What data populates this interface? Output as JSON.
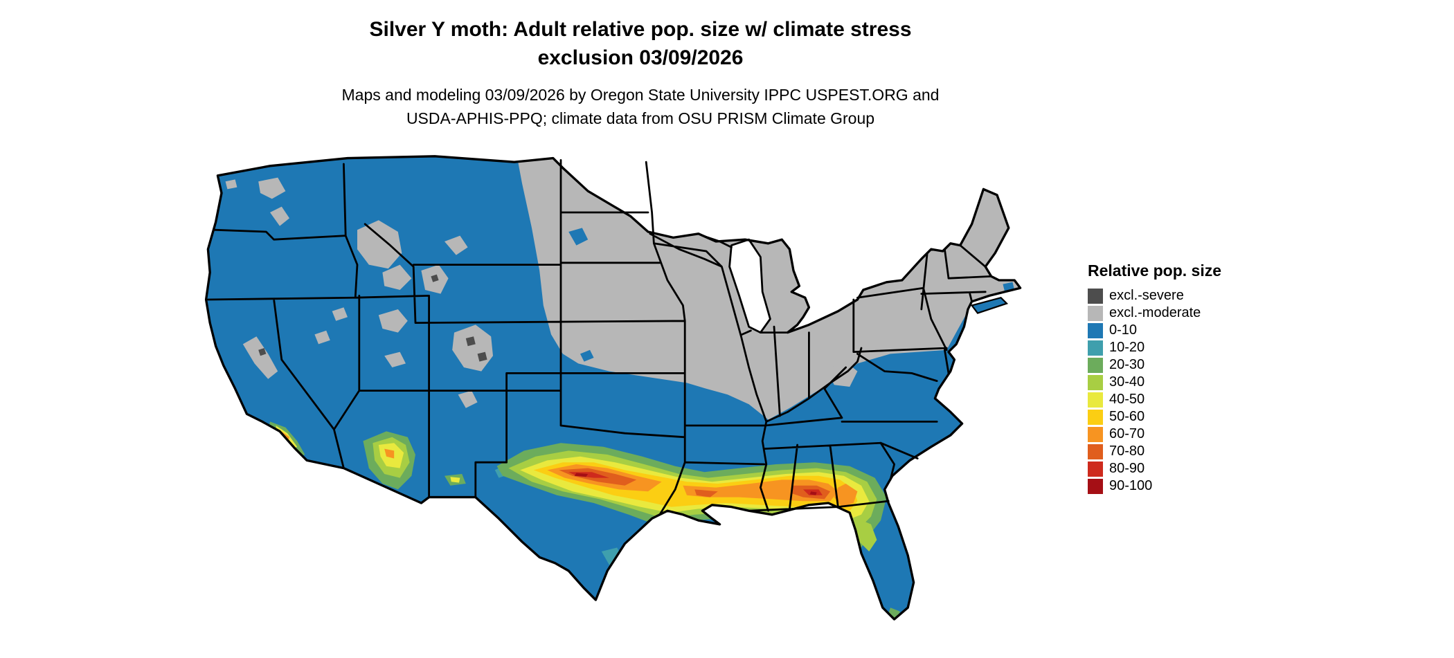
{
  "title": {
    "line1": "Silver Y moth: Adult relative pop. size w/ climate stress",
    "line2": "exclusion 03/09/2026"
  },
  "subtitle": {
    "line1": "Maps and modeling 03/09/2026 by Oregon State University IPPC USPEST.ORG and",
    "line2": "USDA-APHIS-PPQ; climate data from OSU PRISM Climate Group"
  },
  "legend": {
    "title": "Relative pop. size",
    "items": [
      {
        "label": "excl.-severe",
        "color": "#4D4D4D"
      },
      {
        "label": "excl.-moderate",
        "color": "#B7B7B7"
      },
      {
        "label": "0-10",
        "color": "#1E78B4"
      },
      {
        "label": "10-20",
        "color": "#3F9FAD"
      },
      {
        "label": "20-30",
        "color": "#6CAC5C"
      },
      {
        "label": "30-40",
        "color": "#A8CE43"
      },
      {
        "label": "40-50",
        "color": "#E9E93E"
      },
      {
        "label": "50-60",
        "color": "#FBCE13"
      },
      {
        "label": "60-70",
        "color": "#F79421"
      },
      {
        "label": "70-80",
        "color": "#E05E1D"
      },
      {
        "label": "80-90",
        "color": "#CE2A1D"
      },
      {
        "label": "90-100",
        "color": "#A50F15"
      }
    ]
  },
  "map": {
    "region": "Contiguous United States",
    "border_color": "#000000",
    "water_color": "#FFFFFF"
  }
}
